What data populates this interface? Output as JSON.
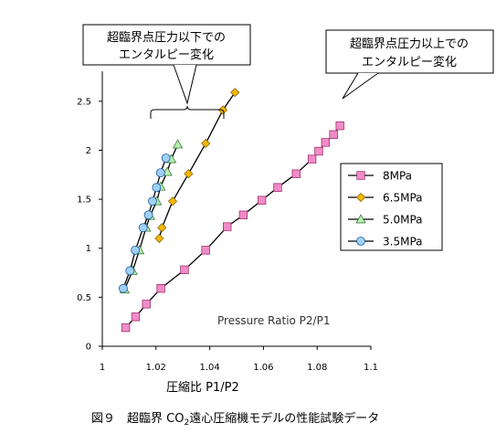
{
  "chart_data": {
    "type": "scatter",
    "xlabel": "圧縮比 P1/P2",
    "xlim": [
      1.0,
      1.1
    ],
    "ylim": [
      0,
      2.75
    ],
    "x_ticks": [
      "1",
      "1.02",
      "1.04",
      "1.06",
      "1.08",
      "1.1"
    ],
    "y_ticks": [
      "0",
      "0.5",
      "1",
      "1.5",
      "2",
      "2.5"
    ],
    "inner_label": "Pressure Ratio P2/P1",
    "legend_position": "right",
    "annotations": {
      "left": [
        "超臨界点圧力以下での",
        "エンタルピー変化"
      ],
      "right": [
        "超臨界点圧力以上での",
        "エンタルピー変化"
      ]
    },
    "series": [
      {
        "name": "8MPa",
        "marker": "square",
        "color": "#f08cc8",
        "edge": "#a0306e",
        "x": [
          1.0087,
          1.0124,
          1.0164,
          1.0218,
          1.0306,
          1.0385,
          1.0465,
          1.0525,
          1.0594,
          1.0653,
          1.0722,
          1.0781,
          1.0806,
          1.0831,
          1.0861,
          1.0885
        ],
        "y": [
          0.19,
          0.3,
          0.43,
          0.59,
          0.78,
          0.98,
          1.22,
          1.34,
          1.49,
          1.62,
          1.76,
          1.91,
          1.99,
          2.08,
          2.16,
          2.25
        ]
      },
      {
        "name": "6.5MPa",
        "marker": "diamond",
        "color": "#f5b800",
        "edge": "#8a6500",
        "x": [
          1.0212,
          1.0222,
          1.0262,
          1.0321,
          1.0385,
          1.0449,
          1.0494
        ],
        "y": [
          1.1,
          1.21,
          1.48,
          1.76,
          2.07,
          2.41,
          2.59
        ]
      },
      {
        "name": "5.0MPa",
        "marker": "triangle",
        "color": "#b8f0b0",
        "edge": "#3a7a3a",
        "x": [
          1.0083,
          1.0113,
          1.0138,
          1.0163,
          1.0178,
          1.0203,
          1.0217,
          1.0242,
          1.0257,
          1.0281
        ],
        "y": [
          0.58,
          0.77,
          0.98,
          1.21,
          1.33,
          1.48,
          1.63,
          1.78,
          1.91,
          2.06
        ]
      },
      {
        "name": "3.5MPa",
        "marker": "circle",
        "color": "#a0d0f8",
        "edge": "#1a5a9a",
        "x": [
          1.0078,
          1.0103,
          1.0123,
          1.0152,
          1.0172,
          1.0187,
          1.0202,
          1.0217,
          1.0237
        ],
        "y": [
          0.59,
          0.77,
          0.98,
          1.21,
          1.34,
          1.48,
          1.62,
          1.77,
          1.92
        ]
      }
    ]
  },
  "caption": {
    "prefix": "図９　超臨界 CO",
    "subscript": "2",
    "suffix": "遠心圧縮機モデルの性能試験データ"
  }
}
